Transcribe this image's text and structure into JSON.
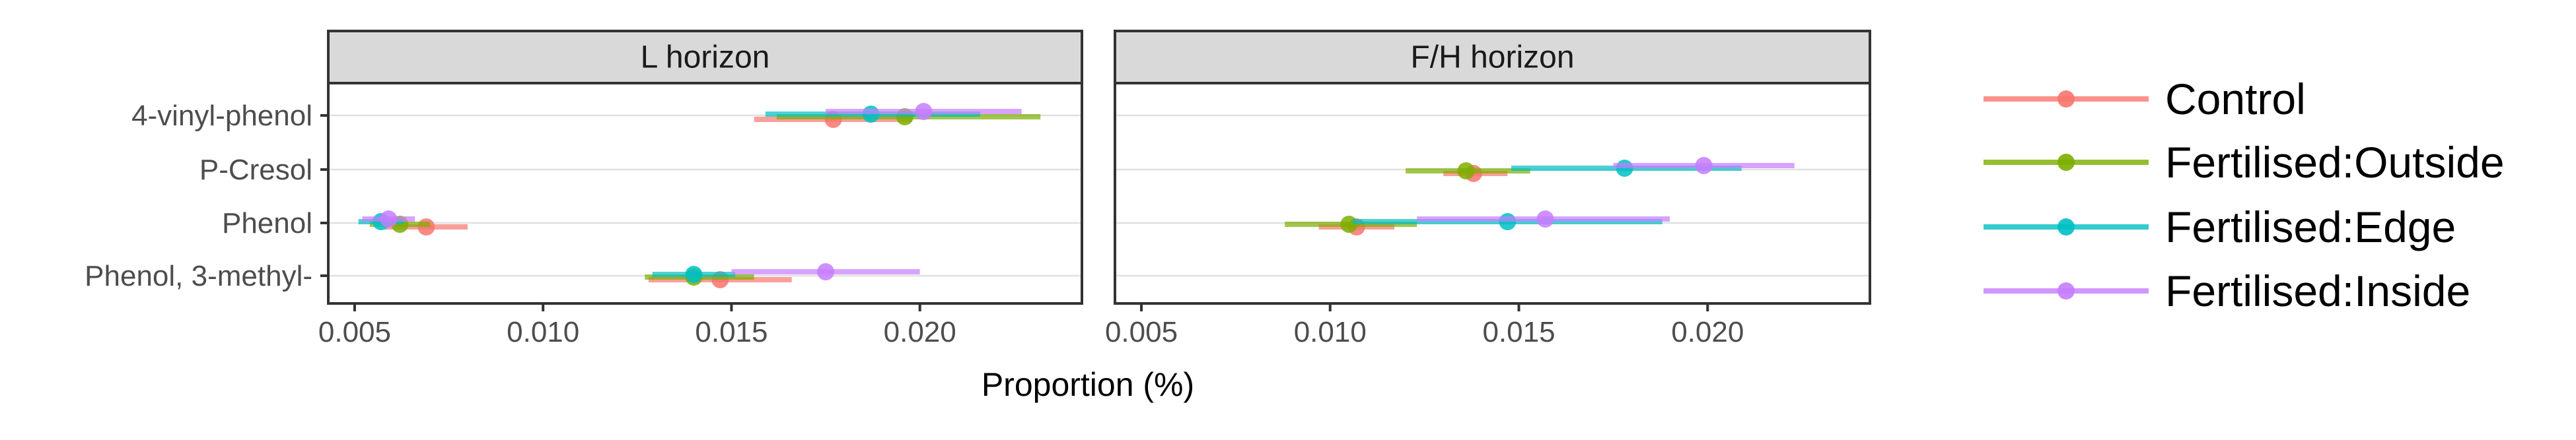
{
  "chart_data": {
    "type": "scatter",
    "subtype": "point-range (faceted)",
    "xlabel": "Proportion (%)",
    "ylabel": "",
    "xlim": [
      0.0043,
      0.0243
    ],
    "xticks": [
      0.005,
      0.01,
      0.015,
      0.02
    ],
    "xtick_labels": [
      "0.005",
      "0.010",
      "0.015",
      "0.020"
    ],
    "grid": "horizontal major lines at categories",
    "legend_position": "right",
    "categories": [
      "4-vinyl-phenol",
      "P-Cresol",
      "Phenol",
      "Phenol, 3-methyl-"
    ],
    "series": [
      {
        "name": "Control",
        "color": "#F8766D"
      },
      {
        "name": "Fertilised:Outside",
        "color": "#7CAE00"
      },
      {
        "name": "Fertilised:Edge",
        "color": "#00BFC4"
      },
      {
        "name": "Fertilised:Inside",
        "color": "#C77CFF"
      }
    ],
    "panels": [
      {
        "title": "L horizon",
        "data": {
          "4-vinyl-phenol": [
            [
              0.0177,
              0.0156,
              0.0198
            ],
            [
              0.0196,
              0.0162,
              0.0232
            ],
            [
              0.0187,
              0.0159,
              0.0216
            ],
            [
              0.0201,
              0.0175,
              0.0227
            ]
          ],
          "P-Cresol": [
            null,
            null,
            null,
            null
          ],
          "Phenol": [
            [
              0.0069,
              0.0058,
              0.008
            ],
            [
              0.0062,
              0.0054,
              0.007
            ],
            [
              0.0057,
              0.0051,
              0.0063
            ],
            [
              0.0059,
              0.0052,
              0.0066
            ]
          ],
          "Phenol, 3-methyl-": [
            [
              0.0147,
              0.0128,
              0.0166
            ],
            [
              0.014,
              0.0127,
              0.0156
            ],
            [
              0.014,
              0.0129,
              0.0151
            ],
            [
              0.0175,
              0.015,
              0.02
            ]
          ]
        }
      },
      {
        "title": "F/H horizon",
        "data": {
          "4-vinyl-phenol": [
            null,
            null,
            null,
            null
          ],
          "P-Cresol": [
            [
              0.0138,
              0.013,
              0.0147
            ],
            [
              0.0136,
              0.012,
              0.0153
            ],
            [
              0.0178,
              0.0148,
              0.0209
            ],
            [
              0.0199,
              0.0175,
              0.0223
            ]
          ],
          "Phenol": [
            [
              0.0107,
              0.0097,
              0.0117
            ],
            [
              0.0105,
              0.0088,
              0.0123
            ],
            [
              0.0147,
              0.0106,
              0.0188
            ],
            [
              0.0157,
              0.0123,
              0.019
            ]
          ],
          "Phenol, 3-methyl-": [
            null,
            null,
            null,
            null
          ]
        }
      }
    ]
  }
}
